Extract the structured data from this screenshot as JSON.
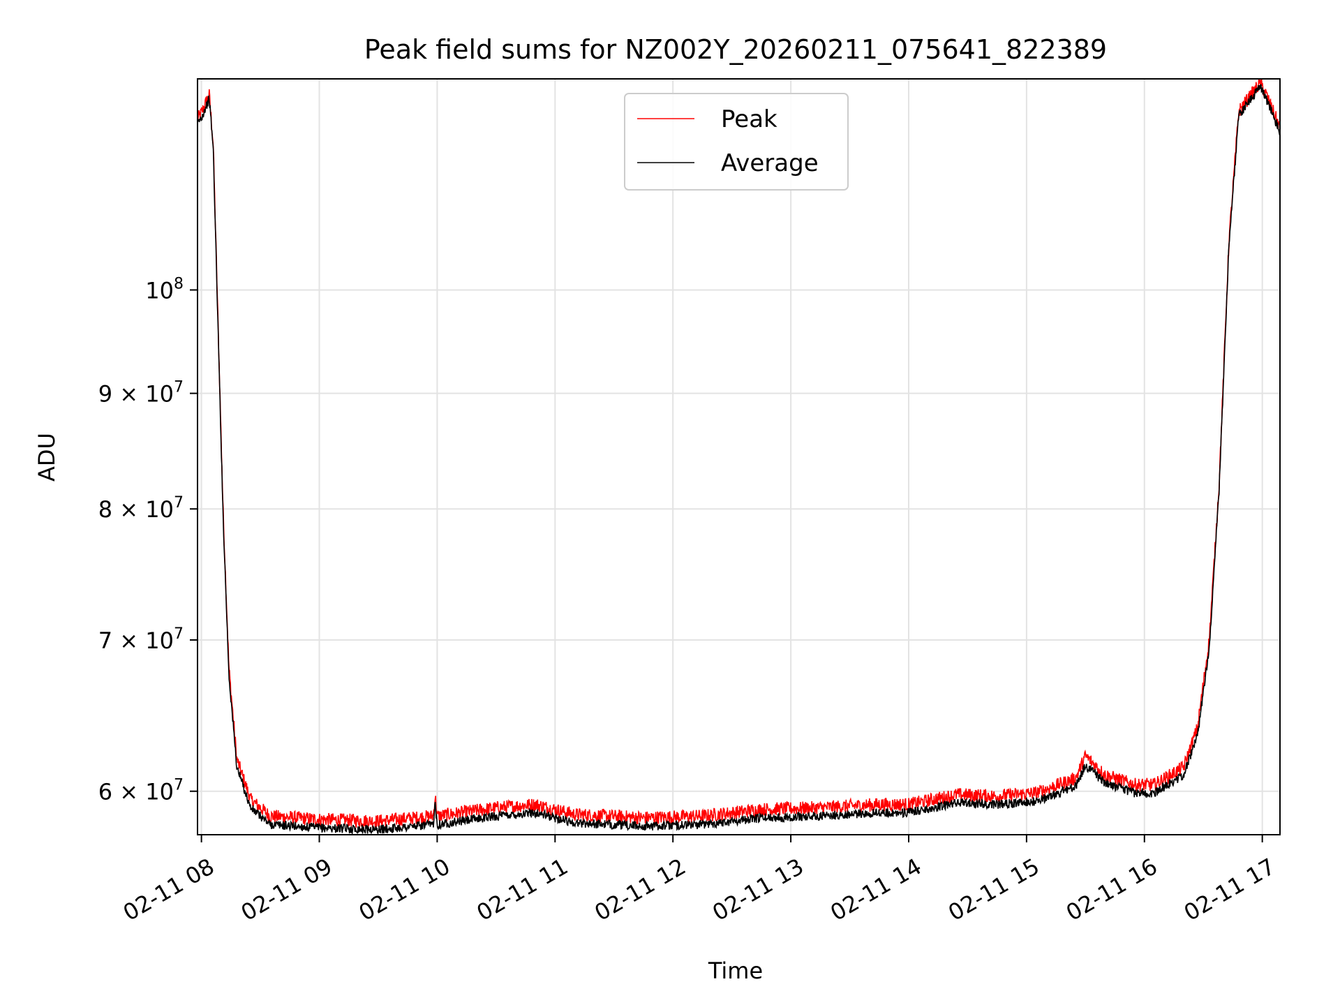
{
  "chart_data": {
    "type": "line",
    "title": "Peak field sums for NZ002Y_20260211_075641_822389",
    "xlabel": "Time",
    "ylabel": "ADU",
    "yscale": "log",
    "xlim": [
      "2026-02-11 07:58",
      "2026-02-11 17:09"
    ],
    "ylim": [
      57400000,
      124000000
    ],
    "xticks": [
      "02-11 08",
      "02-11 09",
      "02-11 10",
      "02-11 11",
      "02-11 12",
      "02-11 13",
      "02-11 14",
      "02-11 15",
      "02-11 16",
      "02-11 17"
    ],
    "yticks": [
      {
        "value": 60000000,
        "mantissa": "6",
        "exponent": "7"
      },
      {
        "value": 70000000,
        "mantissa": "7",
        "exponent": "7"
      },
      {
        "value": 80000000,
        "mantissa": "8",
        "exponent": "7"
      },
      {
        "value": 90000000,
        "mantissa": "9",
        "exponent": "7"
      },
      {
        "value": 100000000,
        "mantissa": "",
        "exponent": "8"
      }
    ],
    "grid": true,
    "legend_position": "upper-center",
    "series": [
      {
        "name": "Peak",
        "color": "#ff0000",
        "noise": 0.003,
        "points": [
          [
            "2026-02-11 07:58",
            119000000
          ],
          [
            "2026-02-11 08:00",
            119800000
          ],
          [
            "2026-02-11 08:04",
            122000000
          ],
          [
            "2026-02-11 08:06",
            116000000
          ],
          [
            "2026-02-11 08:08",
            100000000
          ],
          [
            "2026-02-11 08:11",
            80000000
          ],
          [
            "2026-02-11 08:14",
            68000000
          ],
          [
            "2026-02-11 08:18",
            62000000
          ],
          [
            "2026-02-11 08:25",
            59500000
          ],
          [
            "2026-02-11 08:35",
            58500000
          ],
          [
            "2026-02-11 09:00",
            58300000
          ],
          [
            "2026-02-11 09:30",
            58200000
          ],
          [
            "2026-02-11 09:58",
            58500000
          ],
          [
            "2026-02-11 09:59",
            59700000
          ],
          [
            "2026-02-11 10:00",
            58500000
          ],
          [
            "2026-02-11 10:30",
            59000000
          ],
          [
            "2026-02-11 10:50",
            59200000
          ],
          [
            "2026-02-11 11:10",
            58600000
          ],
          [
            "2026-02-11 11:45",
            58400000
          ],
          [
            "2026-02-11 12:15",
            58500000
          ],
          [
            "2026-02-11 12:45",
            58900000
          ],
          [
            "2026-02-11 13:15",
            59000000
          ],
          [
            "2026-02-11 13:45",
            59200000
          ],
          [
            "2026-02-11 14:00",
            59200000
          ],
          [
            "2026-02-11 14:25",
            59800000
          ],
          [
            "2026-02-11 14:45",
            59700000
          ],
          [
            "2026-02-11 15:05",
            59900000
          ],
          [
            "2026-02-11 15:25",
            60800000
          ],
          [
            "2026-02-11 15:30",
            62200000
          ],
          [
            "2026-02-11 15:40",
            61000000
          ],
          [
            "2026-02-11 15:55",
            60400000
          ],
          [
            "2026-02-11 16:05",
            60400000
          ],
          [
            "2026-02-11 16:20",
            61500000
          ],
          [
            "2026-02-11 16:27",
            64000000
          ],
          [
            "2026-02-11 16:33",
            70000000
          ],
          [
            "2026-02-11 16:38",
            82000000
          ],
          [
            "2026-02-11 16:43",
            105000000
          ],
          [
            "2026-02-11 16:48",
            120000000
          ],
          [
            "2026-02-11 16:59",
            123500000
          ],
          [
            "2026-02-11 17:02",
            122000000
          ],
          [
            "2026-02-11 17:09",
            118000000
          ]
        ]
      },
      {
        "name": "Average",
        "color": "#000000",
        "noise": 0.002,
        "points": [
          [
            "2026-02-11 07:58",
            118500000
          ],
          [
            "2026-02-11 08:00",
            119200000
          ],
          [
            "2026-02-11 08:04",
            121500000
          ],
          [
            "2026-02-11 08:06",
            115500000
          ],
          [
            "2026-02-11 08:08",
            99500000
          ],
          [
            "2026-02-11 08:11",
            79500000
          ],
          [
            "2026-02-11 08:14",
            67500000
          ],
          [
            "2026-02-11 08:18",
            61500000
          ],
          [
            "2026-02-11 08:25",
            59000000
          ],
          [
            "2026-02-11 08:35",
            58000000
          ],
          [
            "2026-02-11 09:00",
            57800000
          ],
          [
            "2026-02-11 09:30",
            57700000
          ],
          [
            "2026-02-11 09:58",
            58000000
          ],
          [
            "2026-02-11 09:59",
            59300000
          ],
          [
            "2026-02-11 10:00",
            58000000
          ],
          [
            "2026-02-11 10:30",
            58500000
          ],
          [
            "2026-02-11 10:50",
            58700000
          ],
          [
            "2026-02-11 11:10",
            58100000
          ],
          [
            "2026-02-11 11:45",
            57900000
          ],
          [
            "2026-02-11 12:15",
            58000000
          ],
          [
            "2026-02-11 12:45",
            58400000
          ],
          [
            "2026-02-11 13:15",
            58500000
          ],
          [
            "2026-02-11 13:45",
            58700000
          ],
          [
            "2026-02-11 14:00",
            58700000
          ],
          [
            "2026-02-11 14:25",
            59300000
          ],
          [
            "2026-02-11 14:45",
            59200000
          ],
          [
            "2026-02-11 15:05",
            59400000
          ],
          [
            "2026-02-11 15:25",
            60300000
          ],
          [
            "2026-02-11 15:30",
            61600000
          ],
          [
            "2026-02-11 15:40",
            60500000
          ],
          [
            "2026-02-11 15:55",
            59900000
          ],
          [
            "2026-02-11 16:05",
            59900000
          ],
          [
            "2026-02-11 16:20",
            61000000
          ],
          [
            "2026-02-11 16:27",
            63500000
          ],
          [
            "2026-02-11 16:33",
            69500000
          ],
          [
            "2026-02-11 16:38",
            81500000
          ],
          [
            "2026-02-11 16:43",
            104500000
          ],
          [
            "2026-02-11 16:48",
            119500000
          ],
          [
            "2026-02-11 16:59",
            123000000
          ],
          [
            "2026-02-11 17:02",
            121500000
          ],
          [
            "2026-02-11 17:09",
            117500000
          ]
        ]
      }
    ]
  }
}
